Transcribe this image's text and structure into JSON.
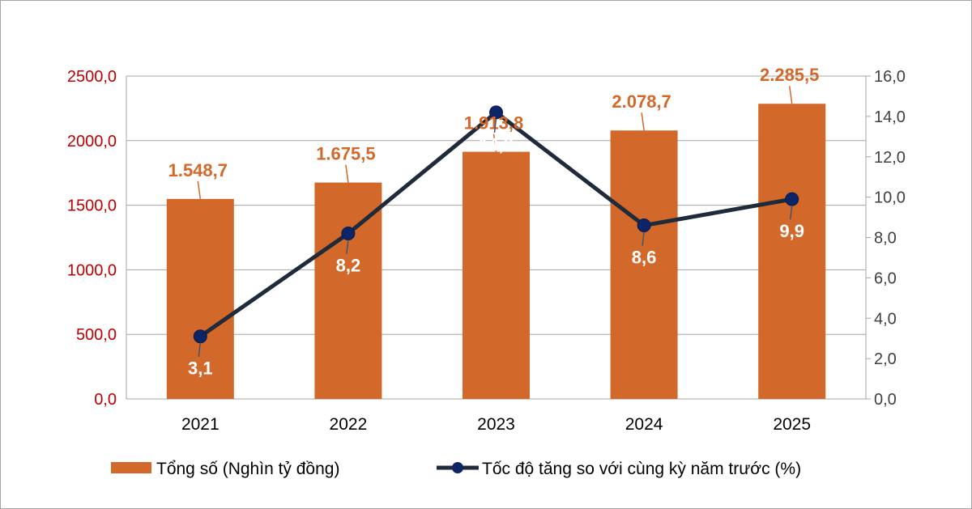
{
  "chart_data": {
    "type": "bar+line",
    "categories": [
      "2021",
      "2022",
      "2023",
      "2024",
      "2025"
    ],
    "series": [
      {
        "name": "Tổng số (Nghìn tỷ đồng)",
        "type": "bar",
        "axis": "left",
        "values": [
          1548.7,
          1675.5,
          1913.8,
          2078.7,
          2285.5
        ],
        "labels": [
          "1.548,7",
          "1.675,5",
          "1.913,8",
          "2.078,7",
          "2.285,5"
        ],
        "color": "#d2692a"
      },
      {
        "name": "Tốc độ tăng so với cùng kỳ năm trước (%)",
        "type": "line",
        "axis": "right",
        "values": [
          3.1,
          8.2,
          14.2,
          8.6,
          9.9
        ],
        "labels": [
          "3,1",
          "8,2",
          "14,2",
          "8,6",
          "9,9"
        ],
        "color": "#1f2a3a",
        "marker_color": "#0d2466"
      }
    ],
    "y_left": {
      "range": [
        0,
        2500
      ],
      "ticks": [
        "0,0",
        "500,0",
        "1000,0",
        "1500,0",
        "2000,0",
        "2500,0"
      ],
      "tick_color": "#c00000"
    },
    "y_right": {
      "range": [
        0,
        16
      ],
      "ticks": [
        "0,0",
        "2,0",
        "4,0",
        "6,0",
        "8,0",
        "10,0",
        "12,0",
        "14,0",
        "16,0"
      ],
      "tick_color": "#404040"
    },
    "grid": true,
    "legend": "bottom"
  }
}
